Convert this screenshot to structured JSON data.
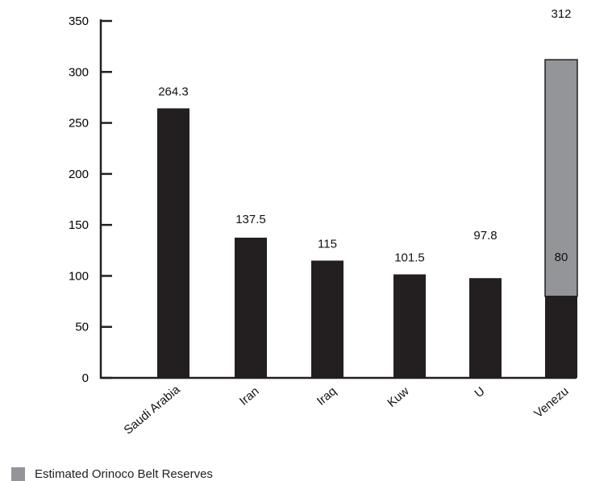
{
  "chart_data": {
    "type": "bar",
    "stacked": true,
    "categories": [
      "Saudi Arabia",
      "Iran",
      "Iraq",
      "Kuw",
      "U",
      "Venezu"
    ],
    "series": [
      {
        "name": "",
        "color": "#231f20",
        "values": [
          264.3,
          137.5,
          115,
          101.5,
          97.8,
          80
        ]
      },
      {
        "name": "Estimated Orinoco Belt Reserves",
        "color": "#939598",
        "values": [
          0,
          0,
          0,
          0,
          0,
          232
        ]
      }
    ],
    "data_labels": [
      "264.3",
      "137.5",
      "115",
      "101.5",
      "97.8",
      "312"
    ],
    "inner_labels": [
      {
        "category": "Venezu",
        "text": "80"
      }
    ],
    "yticks": [
      0,
      50,
      100,
      150,
      200,
      250,
      300,
      350
    ],
    "ylim": [
      0,
      350
    ],
    "title": "",
    "xlabel": "",
    "ylabel": "",
    "grid": false,
    "legend": {
      "placement": "bottom-left",
      "entries": [
        {
          "label": "Estimated Orinoco Belt Reserves",
          "color": "#939598"
        }
      ]
    }
  }
}
